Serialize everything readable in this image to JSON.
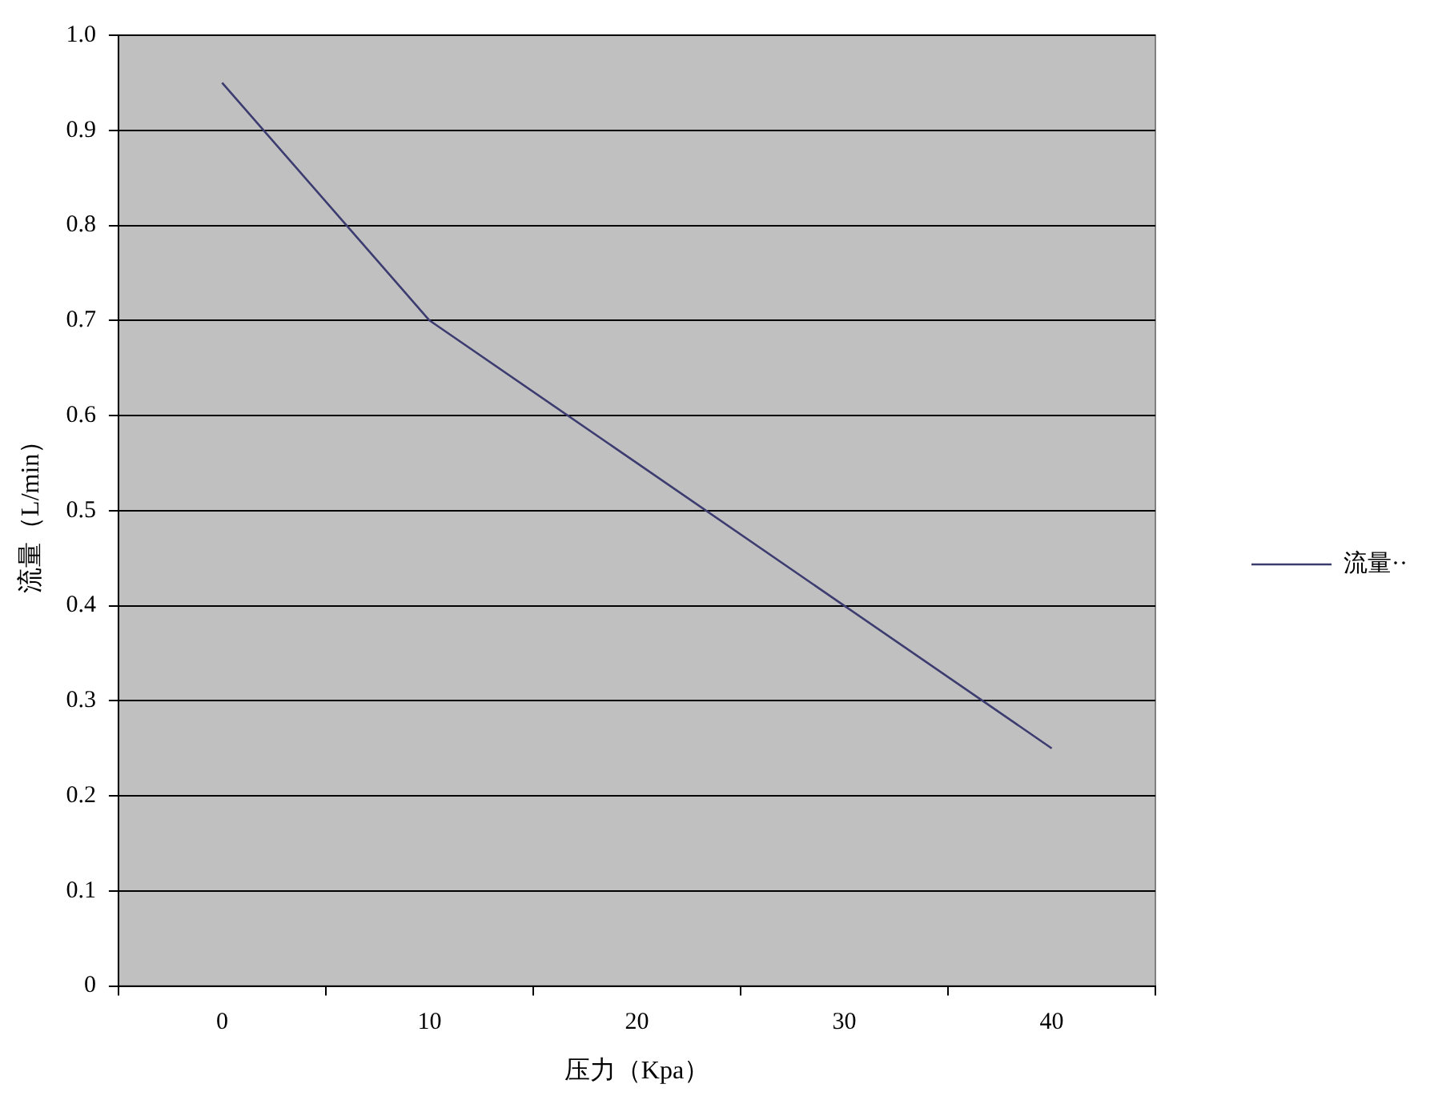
{
  "chart_data": {
    "type": "line",
    "xlabel": "压力（Kpa）",
    "ylabel": "流量（L/min）",
    "categories": [
      "0",
      "10",
      "20",
      "30",
      "40"
    ],
    "series": [
      {
        "name": "流量··",
        "color": "#3c3c70",
        "values": [
          0.95,
          0.7,
          0.55,
          0.4,
          0.25
        ]
      }
    ],
    "ylim": [
      0,
      1
    ],
    "yticks": [
      0,
      0.1,
      0.2,
      0.3,
      0.4,
      0.5,
      0.6,
      0.7,
      0.8,
      0.9,
      {
        "value": 1,
        "label": "1.0"
      }
    ],
    "grid": "y",
    "legend": "right",
    "marker": "none",
    "line_style": "solid"
  }
}
